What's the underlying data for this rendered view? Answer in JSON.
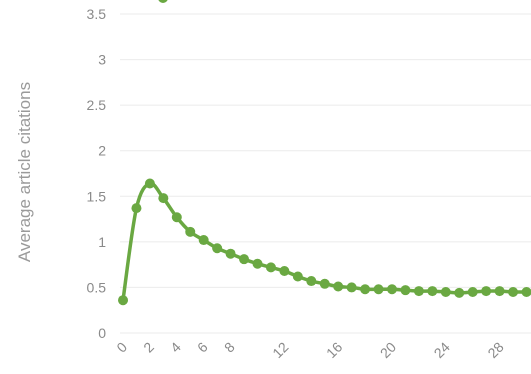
{
  "chart_data": {
    "type": "line",
    "title": "",
    "xlabel": "",
    "ylabel": "Average article citations",
    "ylim": [
      0,
      3.5
    ],
    "y_ticks": [
      "0",
      "0.5",
      "1",
      "1.5",
      "2",
      "2.5",
      "3",
      "3.5"
    ],
    "x_tick_labels": [
      "0",
      "2",
      "4",
      "6",
      "8",
      "12",
      "16",
      "20",
      "24",
      "28"
    ],
    "grid": true,
    "colors": {
      "line": "#6aa842",
      "grid": "#ebebeb",
      "tick_label": "#8a8a8a",
      "axis_title": "#9a9a9a"
    },
    "series": [
      {
        "values": [
          {
            "x": 0,
            "y": 0.36
          },
          {
            "x": 1,
            "y": 1.37
          },
          {
            "x": 2,
            "y": 1.64
          },
          {
            "x": 3,
            "y": 1.48
          },
          {
            "x": 4,
            "y": 1.27
          },
          {
            "x": 5,
            "y": 1.11
          },
          {
            "x": 6,
            "y": 1.02
          },
          {
            "x": 7,
            "y": 0.93
          },
          {
            "x": 8,
            "y": 0.87
          },
          {
            "x": 9,
            "y": 0.81
          },
          {
            "x": 10,
            "y": 0.76
          },
          {
            "x": 11,
            "y": 0.72
          },
          {
            "x": 12,
            "y": 0.68
          },
          {
            "x": 13,
            "y": 0.62
          },
          {
            "x": 14,
            "y": 0.57
          },
          {
            "x": 15,
            "y": 0.54
          },
          {
            "x": 16,
            "y": 0.51
          },
          {
            "x": 17,
            "y": 0.5
          },
          {
            "x": 18,
            "y": 0.48
          },
          {
            "x": 19,
            "y": 0.48
          },
          {
            "x": 20,
            "y": 0.48
          },
          {
            "x": 21,
            "y": 0.47
          },
          {
            "x": 22,
            "y": 0.46
          },
          {
            "x": 23,
            "y": 0.46
          },
          {
            "x": 24,
            "y": 0.45
          },
          {
            "x": 25,
            "y": 0.44
          },
          {
            "x": 26,
            "y": 0.45
          },
          {
            "x": 27,
            "y": 0.46
          },
          {
            "x": 28,
            "y": 0.46
          },
          {
            "x": 29,
            "y": 0.45
          },
          {
            "x": 30,
            "y": 0.45
          }
        ]
      }
    ]
  }
}
